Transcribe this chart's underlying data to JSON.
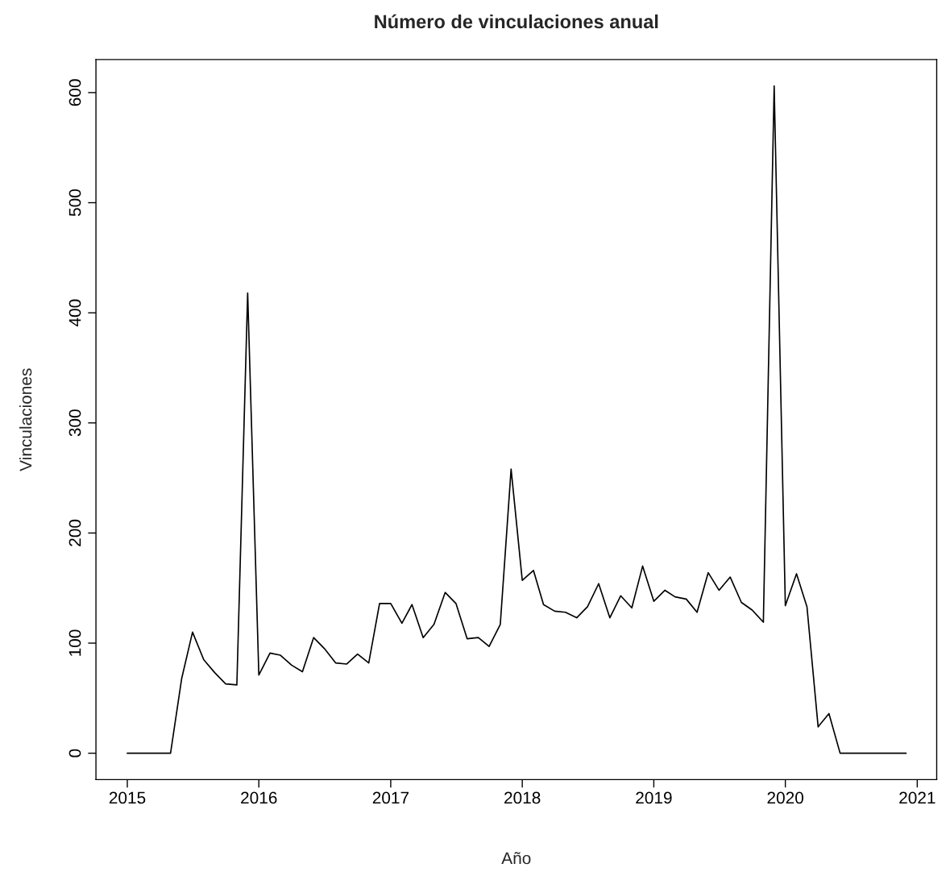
{
  "chart_data": {
    "type": "line",
    "title": "Número de vinculaciones anual",
    "xlabel": "Año",
    "ylabel": "Vinculaciones",
    "x": [
      "2015-01",
      "2015-02",
      "2015-03",
      "2015-04",
      "2015-05",
      "2015-06",
      "2015-07",
      "2015-08",
      "2015-09",
      "2015-10",
      "2015-11",
      "2015-12",
      "2016-01",
      "2016-02",
      "2016-03",
      "2016-04",
      "2016-05",
      "2016-06",
      "2016-07",
      "2016-08",
      "2016-09",
      "2016-10",
      "2016-11",
      "2016-12",
      "2017-01",
      "2017-02",
      "2017-03",
      "2017-04",
      "2017-05",
      "2017-06",
      "2017-07",
      "2017-08",
      "2017-09",
      "2017-10",
      "2017-11",
      "2017-12",
      "2018-01",
      "2018-02",
      "2018-03",
      "2018-04",
      "2018-05",
      "2018-06",
      "2018-07",
      "2018-08",
      "2018-09",
      "2018-10",
      "2018-11",
      "2018-12",
      "2019-01",
      "2019-02",
      "2019-03",
      "2019-04",
      "2019-05",
      "2019-06",
      "2019-07",
      "2019-08",
      "2019-09",
      "2019-10",
      "2019-11",
      "2019-12",
      "2020-01",
      "2020-02",
      "2020-03",
      "2020-04",
      "2020-05",
      "2020-06",
      "2020-07",
      "2020-08",
      "2020-09",
      "2020-10",
      "2020-11",
      "2020-12"
    ],
    "series": [
      {
        "color": "#000000",
        "values": [
          0,
          0,
          0,
          0,
          0,
          68,
          110,
          85,
          73,
          63,
          62,
          418,
          71,
          91,
          89,
          80,
          74,
          105,
          95,
          82,
          81,
          90,
          82,
          136,
          136,
          118,
          135,
          105,
          117,
          146,
          136,
          104,
          105,
          97,
          117,
          258,
          157,
          166,
          135,
          129,
          128,
          123,
          133,
          154,
          123,
          143,
          132,
          170,
          138,
          148,
          142,
          140,
          128,
          164,
          148,
          160,
          137,
          130,
          119,
          606,
          134,
          163,
          133,
          24,
          36,
          0,
          0,
          0,
          0,
          0,
          0,
          0
        ]
      }
    ],
    "xlim": [
      "2014-10-06",
      "2021-02-24"
    ],
    "ylim": [
      -24,
      630
    ],
    "xticks": [
      {
        "value": "2015-01-01",
        "label": "2015"
      },
      {
        "value": "2016-01-01",
        "label": "2016"
      },
      {
        "value": "2017-01-01",
        "label": "2017"
      },
      {
        "value": "2018-01-01",
        "label": "2018"
      },
      {
        "value": "2019-01-01",
        "label": "2019"
      },
      {
        "value": "2020-01-01",
        "label": "2020"
      },
      {
        "value": "2021-01-01",
        "label": "2021"
      }
    ],
    "yticks": [
      0,
      100,
      200,
      300,
      400,
      500,
      600
    ],
    "grid": false,
    "legend": false,
    "marker": "none",
    "line_style": "solid"
  }
}
